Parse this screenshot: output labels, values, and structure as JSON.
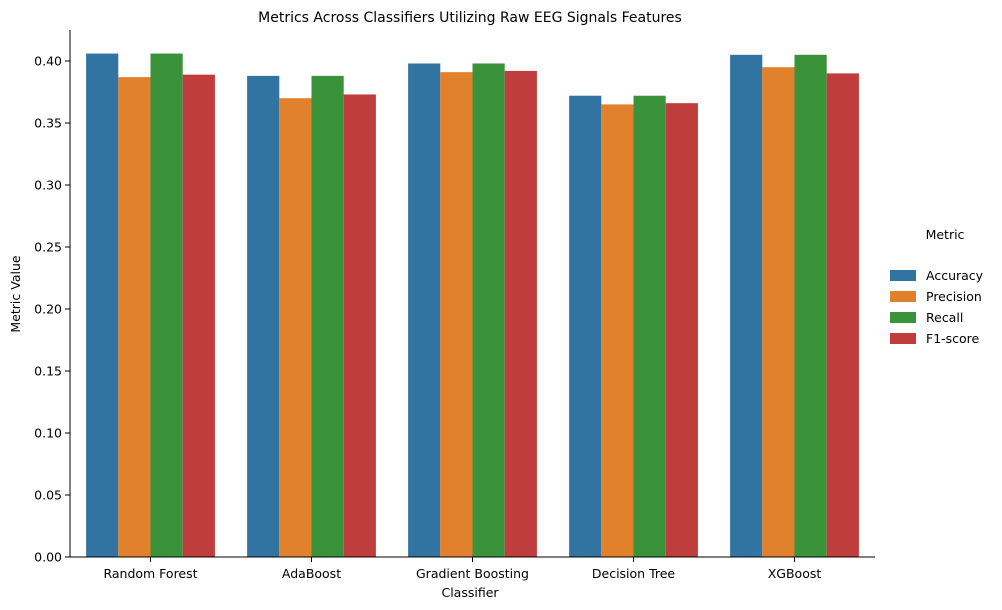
{
  "chart_data": {
    "type": "bar",
    "title": "Metrics Across Classifiers Utilizing Raw EEG Signals Features",
    "xlabel": "Classifier",
    "ylabel": "Metric Value",
    "ylim": [
      0,
      0.425
    ],
    "yticks": [
      "0.00",
      "0.05",
      "0.10",
      "0.15",
      "0.20",
      "0.25",
      "0.30",
      "0.35",
      "0.40"
    ],
    "ytick_values": [
      0,
      0.05,
      0.1,
      0.15,
      0.2,
      0.25,
      0.3,
      0.35,
      0.4
    ],
    "grid": false,
    "legend_title": "Metric",
    "legend_position": "right",
    "categories": [
      "Random Forest",
      "AdaBoost",
      "Gradient Boosting",
      "Decision Tree",
      "XGBoost"
    ],
    "series": [
      {
        "name": "Accuracy",
        "color": "#3274a1",
        "values": [
          0.406,
          0.388,
          0.398,
          0.372,
          0.405
        ]
      },
      {
        "name": "Precision",
        "color": "#e1812c",
        "values": [
          0.387,
          0.37,
          0.391,
          0.365,
          0.395
        ]
      },
      {
        "name": "Recall",
        "color": "#3a923a",
        "values": [
          0.406,
          0.388,
          0.398,
          0.372,
          0.405
        ]
      },
      {
        "name": "F1-score",
        "color": "#c03d3e",
        "values": [
          0.389,
          0.373,
          0.392,
          0.366,
          0.39
        ]
      }
    ]
  }
}
